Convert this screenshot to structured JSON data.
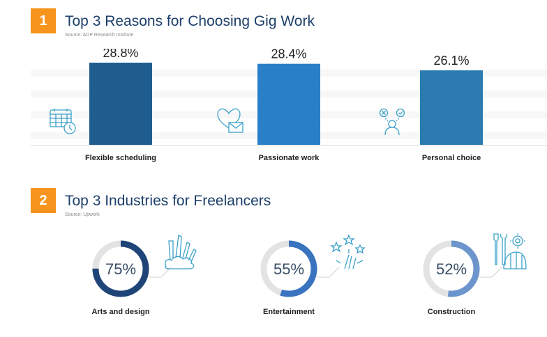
{
  "section1": {
    "number": "1",
    "title": "Top 3 Reasons for Choosing Gig Work",
    "source": "Source: ADP Research Institute"
  },
  "section2": {
    "number": "2",
    "title": "Top 3 Industries for Freelancers",
    "source": "Source: Upwork"
  },
  "icons": {
    "bars": [
      "calendar-clock-icon",
      "heart-envelope-icon",
      "person-choice-icon"
    ],
    "donuts": [
      "art-supplies-icon",
      "fireworks-icon",
      "tools-helmet-icon"
    ]
  },
  "colors": {
    "badge": "#f7941d",
    "title": "#1d3f6b",
    "bar1": "#1f5d8e",
    "bar2": "#2a7fc9",
    "bar3": "#2b7bb0",
    "donut1": "#1f4478",
    "donut2": "#3a73bf",
    "donut3": "#6b95cc",
    "track": "#e3e3e3"
  },
  "chart_data": [
    {
      "type": "bar",
      "categories": [
        "Flexible scheduling",
        "Passionate work",
        "Personal choice"
      ],
      "values": [
        28.8,
        28.4,
        26.1
      ],
      "value_labels": [
        "28.8%",
        "28.4%",
        "26.1%"
      ],
      "title": "Top 3 Reasons for Choosing Gig Work",
      "ylim": [
        0,
        30
      ],
      "grid": false
    },
    {
      "type": "pie",
      "categories": [
        "Arts and design",
        "Entertainment",
        "Construction"
      ],
      "values": [
        75,
        55,
        52
      ],
      "value_labels": [
        "75%",
        "55%",
        "52%"
      ],
      "title": "Top 3 Industries for Freelancers"
    }
  ]
}
